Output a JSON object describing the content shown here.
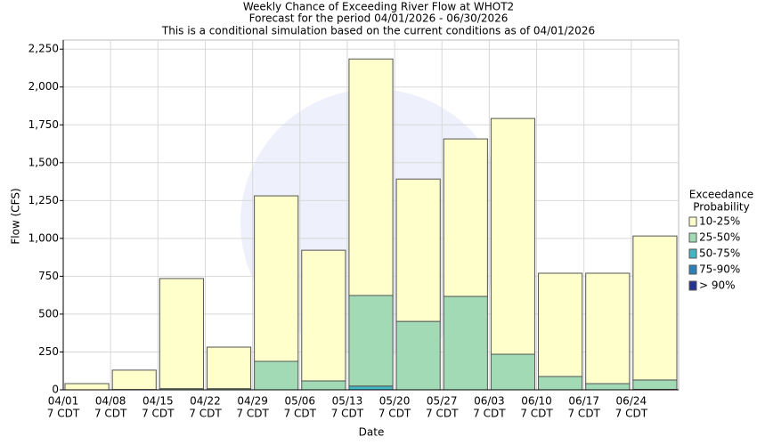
{
  "chart_data": {
    "type": "stacked_bar",
    "title": "Weekly Chance of Exceeding River Flow at WHOT2",
    "subtitle": "Forecast for the period 04/01/2026 - 06/30/2026",
    "note": "This is a conditional simulation based on the current conditions as of 04/01/2026",
    "x_label": "Date",
    "y_label": "Flow (CFS)",
    "categories": [
      "04/01",
      "04/08",
      "04/15",
      "04/22",
      "04/29",
      "05/06",
      "05/13",
      "05/20",
      "05/27",
      "06/03",
      "06/10",
      "06/17",
      "06/24"
    ],
    "category_sublabels": [
      "7 CDT",
      "7 CDT",
      "7 CDT",
      "7 CDT",
      "7 CDT",
      "7 CDT",
      "7 CDT",
      "7 CDT",
      "7 CDT",
      "7 CDT",
      "7 CDT",
      "7 CDT",
      "7 CDT"
    ],
    "legend_title": [
      "Exceedance",
      "Probability"
    ],
    "series": [
      {
        "name": "10-25%",
        "color": "#ffffcc",
        "values": [
          41,
          128,
          727,
          274,
          1093,
          863,
          1562,
          940,
          1040,
          1557,
          682,
          729,
          951
        ]
      },
      {
        "name": "25-50%",
        "color": "#a1dab4",
        "values": [
          0,
          2,
          8,
          8,
          188,
          59,
          598,
          452,
          617,
          235,
          88,
          41,
          62
        ]
      },
      {
        "name": "50-75%",
        "color": "#41b6c4",
        "values": [
          0,
          0,
          0,
          0,
          0,
          0,
          25,
          0,
          0,
          0,
          0,
          0,
          0
        ]
      },
      {
        "name": "75-90%",
        "color": "#2c7fb8",
        "values": [
          0,
          0,
          0,
          0,
          0,
          0,
          0,
          0,
          0,
          0,
          0,
          0,
          0
        ]
      },
      {
        "name": "> 90%",
        "color": "#253494",
        "values": [
          0,
          0,
          0,
          0,
          0,
          0,
          0,
          0,
          0,
          0,
          0,
          0,
          3
        ]
      }
    ],
    "ylim": [
      0,
      2310
    ],
    "yticks": [
      0,
      250,
      500,
      750,
      {
        "value": 1000,
        "label": "1,000"
      },
      {
        "value": 1250,
        "label": "1,250"
      },
      {
        "value": 1500,
        "label": "1,500"
      },
      {
        "value": 1750,
        "label": "1,750"
      },
      {
        "value": 2000,
        "label": "2,000"
      },
      {
        "value": 2250,
        "label": "2,250"
      }
    ],
    "grid": true
  }
}
